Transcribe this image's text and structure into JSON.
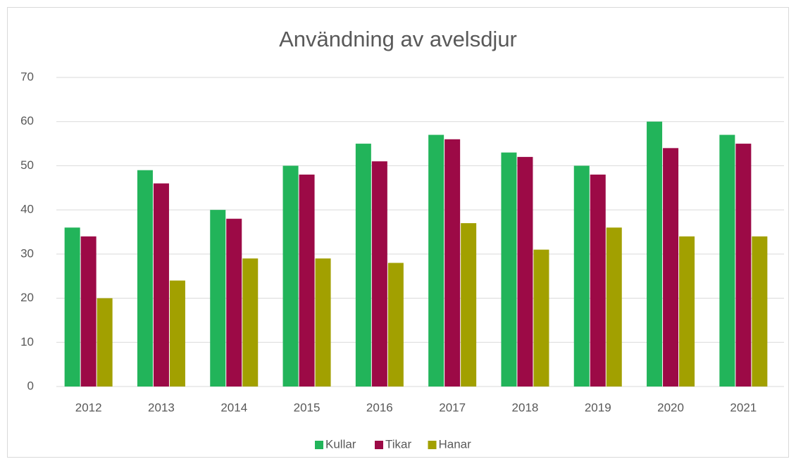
{
  "chart_data": {
    "type": "bar",
    "title": "Användning av avelsdjur",
    "categories": [
      "2012",
      "2013",
      "2014",
      "2015",
      "2016",
      "2017",
      "2018",
      "2019",
      "2020",
      "2021"
    ],
    "series": [
      {
        "name": "Kullar",
        "color": "#22b45a",
        "values": [
          36,
          49,
          40,
          50,
          55,
          57,
          53,
          50,
          60,
          57
        ]
      },
      {
        "name": "Tikar",
        "color": "#9c0a46",
        "values": [
          34,
          46,
          38,
          48,
          51,
          56,
          52,
          48,
          54,
          55
        ]
      },
      {
        "name": "Hanar",
        "color": "#a2a000",
        "values": [
          20,
          24,
          29,
          29,
          28,
          37,
          31,
          36,
          34,
          34
        ]
      }
    ],
    "ylim": [
      0,
      70
    ],
    "yticks": [
      0,
      10,
      20,
      30,
      40,
      50,
      60,
      70
    ],
    "grid": true,
    "legend": "bottom"
  }
}
